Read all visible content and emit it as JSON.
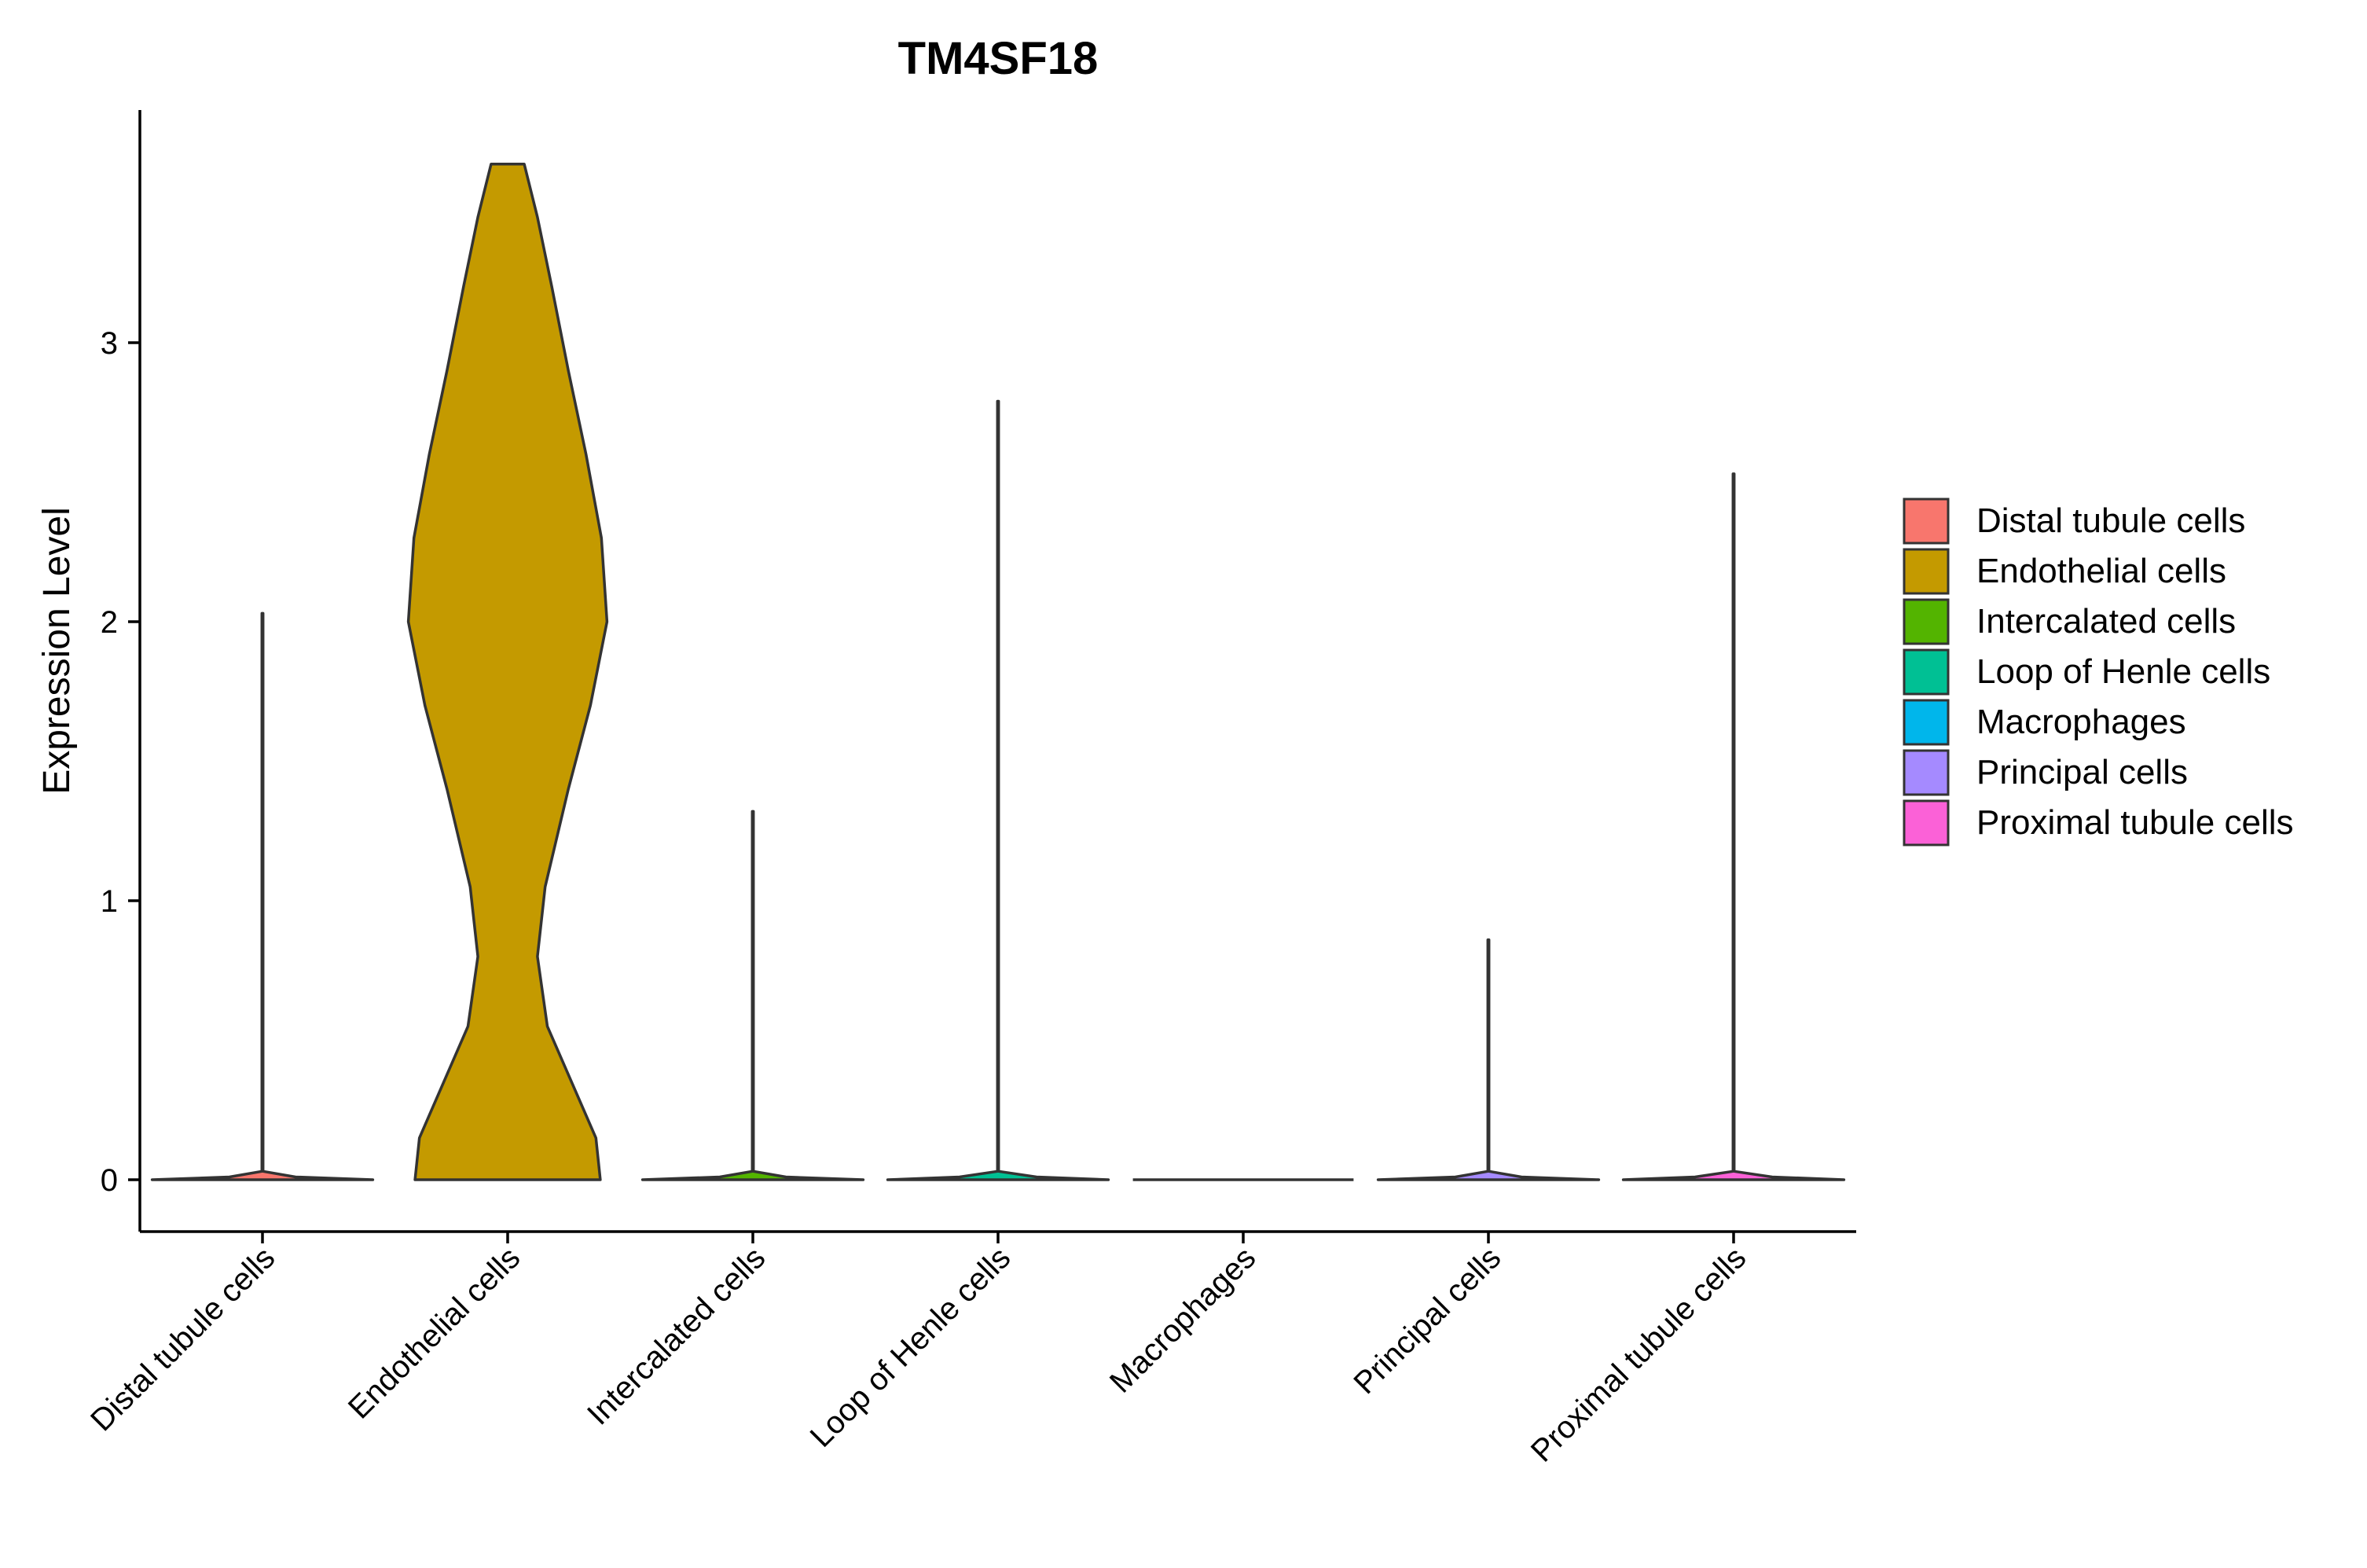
{
  "chart_data": {
    "type": "violin",
    "title": "TM4SF18",
    "xlabel": "",
    "ylabel": "Expression Level",
    "ylim": [
      -0.18,
      3.83
    ],
    "yticks": [
      0,
      1,
      2,
      3
    ],
    "grid": false,
    "legend_position": "right",
    "categories": [
      "Distal tubule cells",
      "Endothelial cells",
      "Intercalated cells",
      "Loop of Henle cells",
      "Macrophages",
      "Principal cells",
      "Proximal tubule cells"
    ],
    "colors": [
      "#F8766D",
      "#C49A00",
      "#53B400",
      "#00C094",
      "#00B6EB",
      "#A58AFF",
      "#FB61D7"
    ],
    "series": [
      {
        "name": "Distal tubule cells",
        "max": 2.03,
        "profile": [
          [
            0,
            1.0
          ],
          [
            0.01,
            0.3
          ],
          [
            0.03,
            0.005
          ],
          [
            2.03,
            0.005
          ]
        ]
      },
      {
        "name": "Endothelial cells",
        "max": 3.64,
        "profile": [
          [
            0,
            0.84
          ],
          [
            0.15,
            0.8
          ],
          [
            0.35,
            0.58
          ],
          [
            0.55,
            0.36
          ],
          [
            0.8,
            0.27
          ],
          [
            1.05,
            0.34
          ],
          [
            1.4,
            0.55
          ],
          [
            1.7,
            0.75
          ],
          [
            2.0,
            0.9
          ],
          [
            2.3,
            0.85
          ],
          [
            2.6,
            0.71
          ],
          [
            2.9,
            0.55
          ],
          [
            3.2,
            0.4
          ],
          [
            3.45,
            0.27
          ],
          [
            3.64,
            0.15
          ]
        ]
      },
      {
        "name": "Intercalated cells",
        "max": 1.32,
        "profile": [
          [
            0,
            1.0
          ],
          [
            0.01,
            0.3
          ],
          [
            0.03,
            0.005
          ],
          [
            1.32,
            0.005
          ]
        ]
      },
      {
        "name": "Loop of Henle cells",
        "max": 2.79,
        "profile": [
          [
            0,
            1.0
          ],
          [
            0.01,
            0.35
          ],
          [
            0.03,
            0.005
          ],
          [
            2.79,
            0.005
          ]
        ]
      },
      {
        "name": "Macrophages",
        "max": 0.0,
        "profile": [
          [
            0,
            1.0
          ]
        ]
      },
      {
        "name": "Principal cells",
        "max": 0.86,
        "profile": [
          [
            0,
            1.0
          ],
          [
            0.01,
            0.3
          ],
          [
            0.03,
            0.005
          ],
          [
            0.86,
            0.005
          ]
        ]
      },
      {
        "name": "Proximal tubule cells",
        "max": 2.53,
        "profile": [
          [
            0,
            1.0
          ],
          [
            0.01,
            0.35
          ],
          [
            0.03,
            0.005
          ],
          [
            2.53,
            0.005
          ]
        ]
      }
    ]
  }
}
